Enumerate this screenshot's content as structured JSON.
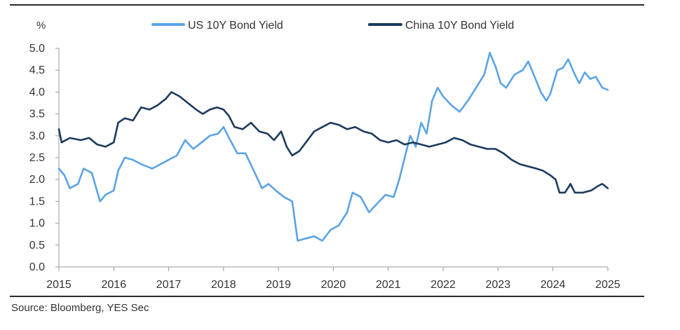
{
  "chart_data": {
    "type": "line",
    "title": "",
    "xlabel": "",
    "ylabel": "%",
    "ylim": [
      0,
      5
    ],
    "xlim": [
      2015,
      2025
    ],
    "yticks": [
      "0.0",
      "0.5",
      "1.0",
      "1.5",
      "2.0",
      "2.5",
      "3.0",
      "3.5",
      "4.0",
      "4.5",
      "5.0"
    ],
    "xticks": [
      "2015",
      "2016",
      "2017",
      "2018",
      "2019",
      "2020",
      "2021",
      "2022",
      "2023",
      "2024",
      "2025"
    ],
    "grid": false,
    "legend_position": "top",
    "source": "Source: Bloomberg, YES Sec",
    "series": [
      {
        "name": "US 10Y Bond Yield",
        "color": "#5ba3e6",
        "points": [
          [
            2015.0,
            2.25
          ],
          [
            2015.1,
            2.1
          ],
          [
            2015.2,
            1.8
          ],
          [
            2015.35,
            1.9
          ],
          [
            2015.45,
            2.25
          ],
          [
            2015.6,
            2.15
          ],
          [
            2015.75,
            1.5
          ],
          [
            2015.85,
            1.65
          ],
          [
            2016.0,
            1.75
          ],
          [
            2016.08,
            2.2
          ],
          [
            2016.2,
            2.5
          ],
          [
            2016.35,
            2.45
          ],
          [
            2016.5,
            2.35
          ],
          [
            2016.7,
            2.25
          ],
          [
            2016.85,
            2.35
          ],
          [
            2017.0,
            2.45
          ],
          [
            2017.15,
            2.55
          ],
          [
            2017.3,
            2.9
          ],
          [
            2017.45,
            2.7
          ],
          [
            2017.6,
            2.85
          ],
          [
            2017.75,
            3.0
          ],
          [
            2017.9,
            3.05
          ],
          [
            2018.0,
            3.2
          ],
          [
            2018.1,
            2.95
          ],
          [
            2018.25,
            2.6
          ],
          [
            2018.4,
            2.6
          ],
          [
            2018.55,
            2.2
          ],
          [
            2018.7,
            1.8
          ],
          [
            2018.82,
            1.9
          ],
          [
            2018.95,
            1.75
          ],
          [
            2019.1,
            1.6
          ],
          [
            2019.25,
            1.5
          ],
          [
            2019.35,
            0.6
          ],
          [
            2019.5,
            0.65
          ],
          [
            2019.65,
            0.7
          ],
          [
            2019.8,
            0.6
          ],
          [
            2019.95,
            0.85
          ],
          [
            2020.1,
            0.95
          ],
          [
            2020.25,
            1.25
          ],
          [
            2020.35,
            1.7
          ],
          [
            2020.5,
            1.6
          ],
          [
            2020.65,
            1.25
          ],
          [
            2020.8,
            1.45
          ],
          [
            2020.95,
            1.65
          ],
          [
            2021.1,
            1.6
          ],
          [
            2021.2,
            2.0
          ],
          [
            2021.3,
            2.5
          ],
          [
            2021.4,
            3.0
          ],
          [
            2021.5,
            2.75
          ],
          [
            2021.6,
            3.3
          ],
          [
            2021.7,
            3.05
          ],
          [
            2021.8,
            3.8
          ],
          [
            2021.9,
            4.1
          ],
          [
            2022.0,
            3.9
          ],
          [
            2022.15,
            3.7
          ],
          [
            2022.3,
            3.55
          ],
          [
            2022.45,
            3.8
          ],
          [
            2022.6,
            4.1
          ],
          [
            2022.75,
            4.4
          ],
          [
            2022.85,
            4.9
          ],
          [
            2022.95,
            4.6
          ],
          [
            2023.05,
            4.2
          ],
          [
            2023.15,
            4.1
          ],
          [
            2023.3,
            4.4
          ],
          [
            2023.45,
            4.5
          ],
          [
            2023.55,
            4.7
          ],
          [
            2023.65,
            4.4
          ],
          [
            2023.78,
            4.0
          ],
          [
            2023.88,
            3.8
          ],
          [
            2023.95,
            3.95
          ],
          [
            2024.08,
            4.5
          ],
          [
            2024.18,
            4.55
          ],
          [
            2024.28,
            4.75
          ],
          [
            2024.38,
            4.45
          ],
          [
            2024.48,
            4.2
          ],
          [
            2024.58,
            4.45
          ],
          [
            2024.68,
            4.3
          ],
          [
            2024.78,
            4.35
          ],
          [
            2024.9,
            4.1
          ],
          [
            2025.0,
            4.05
          ]
        ]
      },
      {
        "name": "China 10Y Bond Yield",
        "color": "#1b3a5c",
        "points": [
          [
            2015.0,
            3.15
          ],
          [
            2015.05,
            2.85
          ],
          [
            2015.2,
            2.95
          ],
          [
            2015.4,
            2.9
          ],
          [
            2015.55,
            2.95
          ],
          [
            2015.7,
            2.8
          ],
          [
            2015.85,
            2.75
          ],
          [
            2016.0,
            2.85
          ],
          [
            2016.08,
            3.3
          ],
          [
            2016.2,
            3.4
          ],
          [
            2016.35,
            3.35
          ],
          [
            2016.5,
            3.65
          ],
          [
            2016.65,
            3.6
          ],
          [
            2016.8,
            3.7
          ],
          [
            2016.95,
            3.85
          ],
          [
            2017.05,
            4.0
          ],
          [
            2017.2,
            3.9
          ],
          [
            2017.35,
            3.75
          ],
          [
            2017.5,
            3.6
          ],
          [
            2017.62,
            3.5
          ],
          [
            2017.75,
            3.6
          ],
          [
            2017.88,
            3.65
          ],
          [
            2018.0,
            3.6
          ],
          [
            2018.1,
            3.45
          ],
          [
            2018.2,
            3.2
          ],
          [
            2018.35,
            3.15
          ],
          [
            2018.5,
            3.3
          ],
          [
            2018.65,
            3.1
          ],
          [
            2018.8,
            3.05
          ],
          [
            2018.92,
            2.9
          ],
          [
            2019.05,
            3.1
          ],
          [
            2019.15,
            2.75
          ],
          [
            2019.25,
            2.55
          ],
          [
            2019.38,
            2.65
          ],
          [
            2019.5,
            2.85
          ],
          [
            2019.65,
            3.1
          ],
          [
            2019.8,
            3.2
          ],
          [
            2019.95,
            3.3
          ],
          [
            2020.1,
            3.25
          ],
          [
            2020.25,
            3.15
          ],
          [
            2020.4,
            3.2
          ],
          [
            2020.55,
            3.1
          ],
          [
            2020.7,
            3.05
          ],
          [
            2020.85,
            2.9
          ],
          [
            2021.0,
            2.85
          ],
          [
            2021.15,
            2.9
          ],
          [
            2021.3,
            2.8
          ],
          [
            2021.45,
            2.85
          ],
          [
            2021.6,
            2.8
          ],
          [
            2021.75,
            2.75
          ],
          [
            2021.9,
            2.8
          ],
          [
            2022.05,
            2.85
          ],
          [
            2022.2,
            2.95
          ],
          [
            2022.35,
            2.9
          ],
          [
            2022.5,
            2.8
          ],
          [
            2022.65,
            2.75
          ],
          [
            2022.8,
            2.7
          ],
          [
            2022.95,
            2.7
          ],
          [
            2023.1,
            2.6
          ],
          [
            2023.25,
            2.45
          ],
          [
            2023.4,
            2.35
          ],
          [
            2023.55,
            2.3
          ],
          [
            2023.7,
            2.25
          ],
          [
            2023.82,
            2.2
          ],
          [
            2023.95,
            2.1
          ],
          [
            2024.05,
            2.0
          ],
          [
            2024.12,
            1.7
          ],
          [
            2024.22,
            1.7
          ],
          [
            2024.32,
            1.9
          ],
          [
            2024.4,
            1.7
          ],
          [
            2024.55,
            1.7
          ],
          [
            2024.7,
            1.75
          ],
          [
            2024.82,
            1.85
          ],
          [
            2024.9,
            1.9
          ],
          [
            2025.0,
            1.8
          ]
        ]
      }
    ]
  }
}
